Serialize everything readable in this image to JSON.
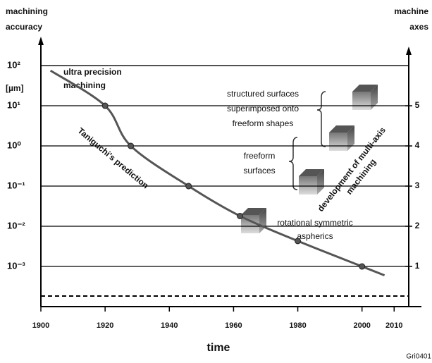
{
  "chart_data": {
    "type": "line",
    "y_label": [
      "machining",
      "accuracy"
    ],
    "y_unit": "[µm]",
    "y2_label": [
      "machine",
      "axes"
    ],
    "x_label": "time",
    "source": "Gri0401",
    "log_y": true,
    "grid": true,
    "color": "#555555",
    "xlim": [
      1900,
      2018.5
    ],
    "xticks": [
      1900,
      1920,
      1940,
      1960,
      1980,
      2000,
      2010
    ],
    "ylim": [
      0.0001,
      380
    ],
    "yticks": [
      {
        "value": 100,
        "label": "10²"
      },
      {
        "value": 10,
        "label": "10¹"
      },
      {
        "value": 1,
        "label": "10⁰"
      },
      {
        "value": 0.1,
        "label": "10⁻¹"
      },
      {
        "value": 0.01,
        "label": "10⁻²"
      },
      {
        "value": 0.001,
        "label": "10⁻³"
      }
    ],
    "y2lim": [
      0,
      6.58
    ],
    "y2ticks": [
      1,
      2,
      3,
      4,
      5
    ],
    "series": [
      {
        "style": "curve",
        "x": [
          1903,
          1920,
          1928,
          1946,
          1962,
          1980,
          2000,
          2007
        ],
        "values": [
          75,
          10,
          1,
          0.1,
          0.018,
          0.0043,
          0.001,
          0.0006
        ]
      },
      {
        "style": "markers",
        "x": [
          1920,
          1928,
          1946,
          1962,
          1980,
          2000
        ],
        "values": [
          10,
          1,
          0.1,
          0.018,
          0.0043,
          0.001
        ]
      }
    ],
    "annotations": {
      "ultra": [
        "ultra precision",
        "machining"
      ],
      "taniguchi": [
        "Taniguchi's prediction"
      ],
      "structured": [
        "structured surfaces",
        "superimposed onto",
        "freeform shapes"
      ],
      "freeform": [
        "freeform",
        "surfaces"
      ],
      "rotational": [
        "rotational symmetric",
        "aspherics"
      ],
      "multiaxis": [
        "development of multi-axis",
        "machining"
      ]
    }
  }
}
